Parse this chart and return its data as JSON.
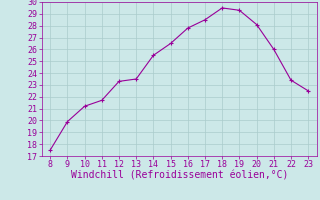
{
  "x": [
    8,
    9,
    10,
    11,
    12,
    13,
    14,
    15,
    16,
    17,
    18,
    19,
    20,
    21,
    22,
    23
  ],
  "y": [
    17.5,
    19.9,
    21.2,
    21.7,
    23.3,
    23.5,
    25.5,
    26.5,
    27.8,
    28.5,
    29.5,
    29.3,
    28.1,
    26.0,
    23.4,
    22.5
  ],
  "line_color": "#990099",
  "marker": "+",
  "marker_color": "#990099",
  "bg_color": "#cce8e8",
  "grid_color": "#aacccc",
  "xlabel": "Windchill (Refroidissement éolien,°C)",
  "xlabel_color": "#990099",
  "tick_color": "#990099",
  "spine_color": "#990099",
  "xlim": [
    7.5,
    23.5
  ],
  "ylim": [
    17,
    30
  ],
  "xticks": [
    8,
    9,
    10,
    11,
    12,
    13,
    14,
    15,
    16,
    17,
    18,
    19,
    20,
    21,
    22,
    23
  ],
  "yticks": [
    17,
    18,
    19,
    20,
    21,
    22,
    23,
    24,
    25,
    26,
    27,
    28,
    29,
    30
  ],
  "tick_fontsize": 6.0,
  "xlabel_fontsize": 7.0,
  "linewidth": 0.8,
  "markersize": 3.5,
  "markeredgewidth": 0.8
}
